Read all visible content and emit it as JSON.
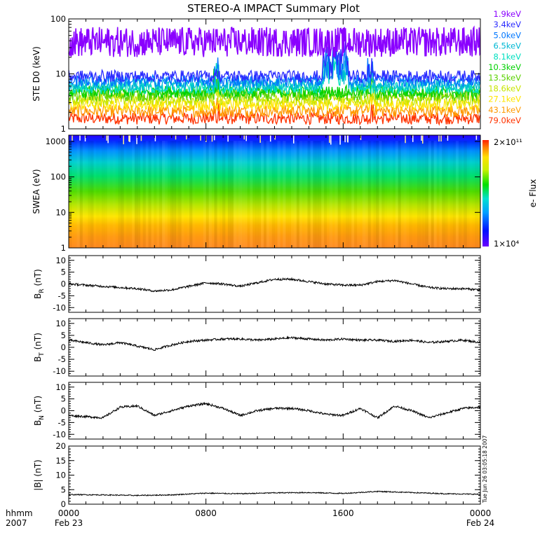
{
  "chart_data": {
    "title": "STEREO-A IMPACT Summary Plot",
    "type": "line",
    "x_axis": {
      "range_hours": [
        0,
        24
      ],
      "tick_labels": [
        {
          "hour": 0,
          "line1": "0000",
          "line2": "Feb 23"
        },
        {
          "hour": 8,
          "line1": "0800",
          "line2": ""
        },
        {
          "hour": 16,
          "line1": "1600",
          "line2": ""
        },
        {
          "hour": 24,
          "line1": "0000",
          "line2": "Feb 24"
        }
      ],
      "format_label": "hhmm",
      "year_label": "2007"
    },
    "timestamp": "Tue Jun 26 03:05:18 2007",
    "panels": [
      {
        "id": "ste",
        "type": "line",
        "ylabel": "STE D0 (keV)",
        "scale": "log",
        "ylim": [
          1,
          100
        ],
        "yticks": [
          {
            "v": 1,
            "label": "1"
          },
          {
            "v": 10,
            "label": "10"
          },
          {
            "v": 100,
            "label": "100"
          }
        ],
        "series": [
          {
            "name": "1.9keV",
            "color": "#8a00ff",
            "level": 38
          },
          {
            "name": "3.4keV",
            "color": "#2b2bff",
            "level": 8.2
          },
          {
            "name": "5.0keV",
            "color": "#0077ff",
            "level": 6.8
          },
          {
            "name": "6.5keV",
            "color": "#00b8d4",
            "level": 5.8
          },
          {
            "name": "8.1keV",
            "color": "#00e0c0",
            "level": 5.0
          },
          {
            "name": "10.3keV",
            "color": "#00d200",
            "level": 4.3
          },
          {
            "name": "13.5keV",
            "color": "#5ad200",
            "level": 3.7
          },
          {
            "name": "18.6keV",
            "color": "#c8e600",
            "level": 3.1
          },
          {
            "name": "27.1keV",
            "color": "#ffe600",
            "level": 2.5
          },
          {
            "name": "43.1keV",
            "color": "#ff9900",
            "level": 1.9
          },
          {
            "name": "79.0keV",
            "color": "#ff3300",
            "level": 1.4
          }
        ]
      },
      {
        "id": "swea",
        "type": "heatmap",
        "ylabel": "SWEA (eV)",
        "scale": "log",
        "ylim": [
          1,
          1500
        ],
        "yticks": [
          {
            "v": 1,
            "label": "1"
          },
          {
            "v": 10,
            "label": "10"
          },
          {
            "v": 100,
            "label": "100"
          },
          {
            "v": 1000,
            "label": "1000"
          }
        ],
        "colorbar": {
          "label": "e- Flux",
          "max_label": "2×10¹¹",
          "min_label": "1×10⁴"
        }
      },
      {
        "id": "br",
        "type": "line",
        "ylabel": "B_R (nT)",
        "ylim": [
          -12,
          12
        ],
        "yticks": [
          {
            "v": 10,
            "label": "10"
          },
          {
            "v": 5,
            "label": "5"
          },
          {
            "v": 0,
            "label": "0"
          },
          {
            "v": -5,
            "label": "-5"
          },
          {
            "v": -10,
            "label": "-10"
          }
        ],
        "profile": [
          [
            0,
            0
          ],
          [
            1,
            -0.5
          ],
          [
            2,
            -1
          ],
          [
            3,
            -1.5
          ],
          [
            4,
            -2
          ],
          [
            5,
            -3
          ],
          [
            6,
            -2.5
          ],
          [
            7,
            -1
          ],
          [
            8,
            0.5
          ],
          [
            9,
            0
          ],
          [
            10,
            -1
          ],
          [
            11,
            0.5
          ],
          [
            12,
            2
          ],
          [
            13,
            2
          ],
          [
            14,
            1
          ],
          [
            15,
            0
          ],
          [
            16,
            -0.5
          ],
          [
            17,
            -0.5
          ],
          [
            18,
            1
          ],
          [
            19,
            1.5
          ],
          [
            20,
            0
          ],
          [
            21,
            -1.5
          ],
          [
            22,
            -2
          ],
          [
            23,
            -2
          ],
          [
            24,
            -2.5
          ]
        ]
      },
      {
        "id": "bt",
        "type": "line",
        "ylabel": "B_T (nT)",
        "ylim": [
          -12,
          12
        ],
        "yticks": [
          {
            "v": 10,
            "label": "10"
          },
          {
            "v": 5,
            "label": "5"
          },
          {
            "v": 0,
            "label": "0"
          },
          {
            "v": -5,
            "label": "-5"
          },
          {
            "v": -10,
            "label": "-10"
          }
        ],
        "profile": [
          [
            0,
            3
          ],
          [
            1,
            2
          ],
          [
            2,
            1
          ],
          [
            3,
            2
          ],
          [
            4,
            0.5
          ],
          [
            5,
            -1
          ],
          [
            6,
            1
          ],
          [
            7,
            2.5
          ],
          [
            8,
            3
          ],
          [
            9,
            3.5
          ],
          [
            10,
            3.5
          ],
          [
            11,
            3
          ],
          [
            12,
            3.5
          ],
          [
            13,
            4
          ],
          [
            14,
            3.5
          ],
          [
            15,
            3
          ],
          [
            16,
            3.5
          ],
          [
            17,
            3
          ],
          [
            18,
            3
          ],
          [
            19,
            2.5
          ],
          [
            20,
            3
          ],
          [
            21,
            2
          ],
          [
            22,
            2.5
          ],
          [
            23,
            3
          ],
          [
            24,
            2
          ]
        ]
      },
      {
        "id": "bn",
        "type": "line",
        "ylabel": "B_N (nT)",
        "ylim": [
          -12,
          12
        ],
        "yticks": [
          {
            "v": 10,
            "label": "10"
          },
          {
            "v": 5,
            "label": "5"
          },
          {
            "v": 0,
            "label": "0"
          },
          {
            "v": -5,
            "label": "-5"
          },
          {
            "v": -10,
            "label": "-10"
          }
        ],
        "profile": [
          [
            0,
            -2
          ],
          [
            1,
            -2.5
          ],
          [
            2,
            -3
          ],
          [
            3,
            1.5
          ],
          [
            4,
            2
          ],
          [
            5,
            -2
          ],
          [
            6,
            0
          ],
          [
            7,
            2
          ],
          [
            8,
            3
          ],
          [
            9,
            1
          ],
          [
            10,
            -2
          ],
          [
            11,
            0
          ],
          [
            12,
            1
          ],
          [
            13,
            1
          ],
          [
            14,
            0
          ],
          [
            15,
            -1.5
          ],
          [
            16,
            -2
          ],
          [
            17,
            1
          ],
          [
            18,
            -3
          ],
          [
            19,
            2
          ],
          [
            20,
            0
          ],
          [
            21,
            -3
          ],
          [
            22,
            -1
          ],
          [
            23,
            1
          ],
          [
            24,
            1.5
          ]
        ]
      },
      {
        "id": "bmag",
        "type": "line",
        "ylabel": "|B| (nT)",
        "ylim": [
          0,
          20
        ],
        "yticks": [
          {
            "v": 20,
            "label": "20"
          },
          {
            "v": 15,
            "label": "15"
          },
          {
            "v": 10,
            "label": "10"
          },
          {
            "v": 5,
            "label": "5"
          },
          {
            "v": 0,
            "label": "0"
          }
        ],
        "profile": [
          [
            0,
            3.3
          ],
          [
            2,
            3.2
          ],
          [
            4,
            3.0
          ],
          [
            6,
            3.2
          ],
          [
            8,
            3.8
          ],
          [
            10,
            3.6
          ],
          [
            12,
            3.9
          ],
          [
            14,
            4.0
          ],
          [
            16,
            3.7
          ],
          [
            18,
            4.4
          ],
          [
            20,
            4.0
          ],
          [
            22,
            3.6
          ],
          [
            24,
            3.4
          ]
        ]
      }
    ]
  }
}
